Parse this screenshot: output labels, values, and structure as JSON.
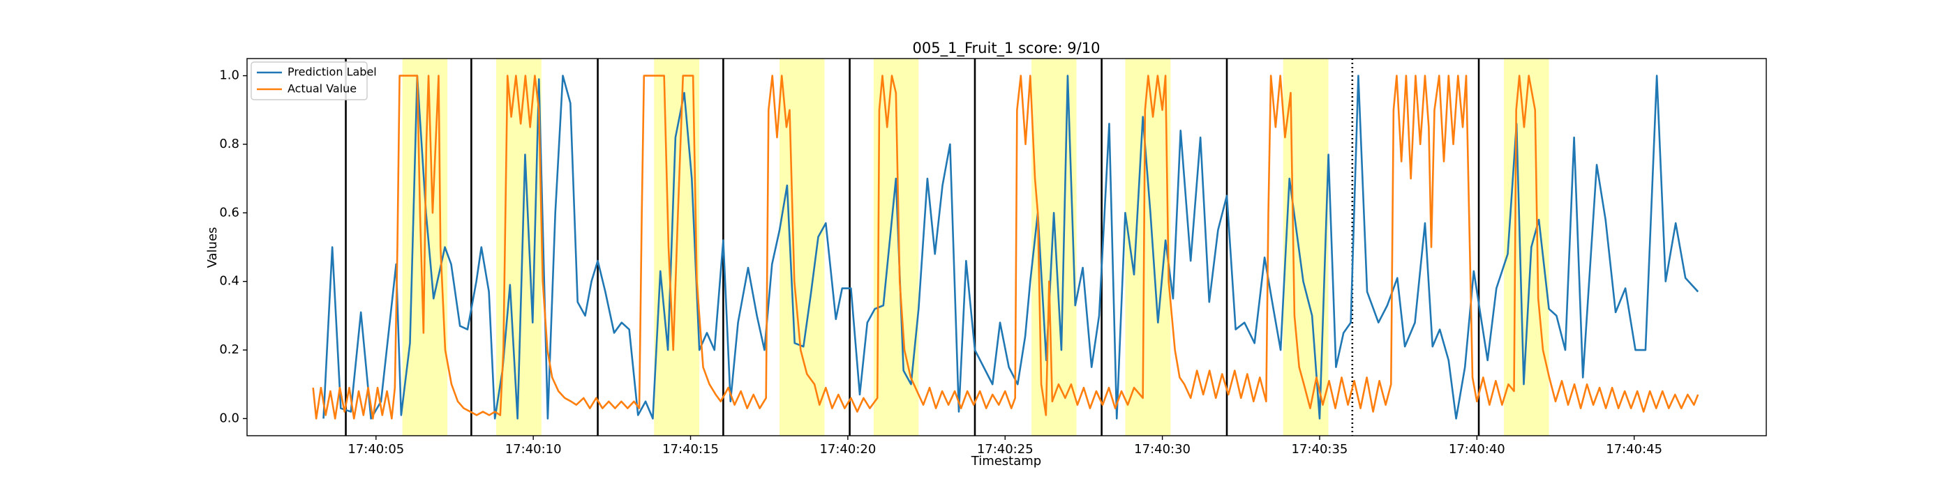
{
  "chart_data": {
    "type": "line",
    "title": "005_1_Fruit_1 score: 9/10",
    "xlabel": "Timestamp",
    "ylabel": "Values",
    "legend": "upper left",
    "grid": false,
    "xlim": [
      0.9,
      49.2
    ],
    "ylim": [
      -0.05,
      1.05
    ],
    "xticks": [
      {
        "value": 5,
        "label": "17:40:05"
      },
      {
        "value": 10,
        "label": "17:40:10"
      },
      {
        "value": 15,
        "label": "17:40:15"
      },
      {
        "value": 20,
        "label": "17:40:20"
      },
      {
        "value": 25,
        "label": "17:40:25"
      },
      {
        "value": 30,
        "label": "17:40:30"
      },
      {
        "value": 35,
        "label": "17:40:35"
      },
      {
        "value": 40,
        "label": "17:40:40"
      },
      {
        "value": 45,
        "label": "17:40:45"
      }
    ],
    "yticks": [
      {
        "value": 0,
        "label": "0.0"
      },
      0.2,
      0.4,
      0.6,
      0.8,
      {
        "value": 1,
        "label": "1.0"
      }
    ],
    "span_color": "#ffff00",
    "spans": [
      [
        5.84,
        7.27
      ],
      [
        8.82,
        10.26
      ],
      [
        13.84,
        15.28
      ],
      [
        17.83,
        19.26
      ],
      [
        20.82,
        22.25
      ],
      [
        25.84,
        27.27
      ],
      [
        28.82,
        30.26
      ],
      [
        33.84,
        35.28
      ],
      [
        40.86,
        42.29
      ]
    ],
    "vline_color": "#000000",
    "vlines": [
      {
        "x": 4.04,
        "style": "solid"
      },
      {
        "x": 8.03,
        "style": "solid"
      },
      {
        "x": 12.05,
        "style": "solid"
      },
      {
        "x": 16.04,
        "style": "solid"
      },
      {
        "x": 20.06,
        "style": "solid"
      },
      {
        "x": 24.04,
        "style": "solid"
      },
      {
        "x": 28.07,
        "style": "solid"
      },
      {
        "x": 32.05,
        "style": "solid"
      },
      {
        "x": 36.04,
        "style": "dotted"
      },
      {
        "x": 40.06,
        "style": "solid"
      }
    ],
    "series": [
      {
        "name": "Prediction Label",
        "color": "#1f77b4",
        "x": [
          3.33,
          3.61,
          3.88,
          4.2,
          4.52,
          4.84,
          5.16,
          5.64,
          5.8,
          6.08,
          6.31,
          6.59,
          6.83,
          7.19,
          7.39,
          7.67,
          7.91,
          8.19,
          8.35,
          8.59,
          8.78,
          9.02,
          9.26,
          9.5,
          9.74,
          9.98,
          10.18,
          10.46,
          10.7,
          10.94,
          11.18,
          11.41,
          11.65,
          11.85,
          12.05,
          12.29,
          12.57,
          12.81,
          13.05,
          13.33,
          13.57,
          13.8,
          14.04,
          14.28,
          14.52,
          14.8,
          15.04,
          15.28,
          15.52,
          15.76,
          16.04,
          16.27,
          16.51,
          16.83,
          17.11,
          17.35,
          17.59,
          17.83,
          18.07,
          18.31,
          18.59,
          18.82,
          19.06,
          19.3,
          19.62,
          19.82,
          20.1,
          20.38,
          20.62,
          20.86,
          21.13,
          21.53,
          21.77,
          22.01,
          22.25,
          22.53,
          22.77,
          23.01,
          23.25,
          23.53,
          23.76,
          24.04,
          24.32,
          24.6,
          24.84,
          25.12,
          25.4,
          25.64,
          25.8,
          26.04,
          26.31,
          26.55,
          26.79,
          26.99,
          27.23,
          27.47,
          27.75,
          27.99,
          28.31,
          28.55,
          28.82,
          29.1,
          29.38,
          29.62,
          29.86,
          30.1,
          30.34,
          30.58,
          30.9,
          31.21,
          31.49,
          31.77,
          32.05,
          32.33,
          32.61,
          32.93,
          33.25,
          33.53,
          33.76,
          34.04,
          34.48,
          34.76,
          35.0,
          35.28,
          35.52,
          35.76,
          35.99,
          36.23,
          36.51,
          36.87,
          37.15,
          37.47,
          37.71,
          38.03,
          38.35,
          38.59,
          38.82,
          39.1,
          39.34,
          39.62,
          39.9,
          40.34,
          40.62,
          40.98,
          41.26,
          41.49,
          41.73,
          41.97,
          42.29,
          42.53,
          42.81,
          43.09,
          43.37,
          43.81,
          44.09,
          44.41,
          44.72,
          45.04,
          45.36,
          45.72,
          46.0,
          46.32,
          46.63,
          47.03
        ],
        "values": [
          0.0,
          0.5,
          0.03,
          0.02,
          0.31,
          0.0,
          0.05,
          0.45,
          0.01,
          0.22,
          1.0,
          0.6,
          0.35,
          0.5,
          0.45,
          0.27,
          0.26,
          0.4,
          0.5,
          0.37,
          0.0,
          0.14,
          0.39,
          0.0,
          0.77,
          0.28,
          0.99,
          0.0,
          0.6,
          1.0,
          0.92,
          0.34,
          0.3,
          0.4,
          0.46,
          0.37,
          0.25,
          0.28,
          0.26,
          0.01,
          0.05,
          0.0,
          0.43,
          0.2,
          0.82,
          0.95,
          0.7,
          0.2,
          0.25,
          0.2,
          0.52,
          0.05,
          0.28,
          0.44,
          0.3,
          0.2,
          0.45,
          0.55,
          0.68,
          0.22,
          0.21,
          0.36,
          0.53,
          0.57,
          0.29,
          0.38,
          0.38,
          0.07,
          0.28,
          0.32,
          0.33,
          0.7,
          0.14,
          0.1,
          0.32,
          0.7,
          0.48,
          0.68,
          0.8,
          0.02,
          0.46,
          0.2,
          0.15,
          0.1,
          0.28,
          0.15,
          0.1,
          0.24,
          0.4,
          0.6,
          0.17,
          0.6,
          0.2,
          1.0,
          0.33,
          0.44,
          0.15,
          0.3,
          0.86,
          0.0,
          0.6,
          0.42,
          0.88,
          0.6,
          0.28,
          0.52,
          0.35,
          0.84,
          0.46,
          0.82,
          0.34,
          0.55,
          0.65,
          0.26,
          0.28,
          0.22,
          0.47,
          0.32,
          0.2,
          0.7,
          0.4,
          0.3,
          0.0,
          0.77,
          0.15,
          0.25,
          0.28,
          1.0,
          0.37,
          0.28,
          0.33,
          0.41,
          0.21,
          0.28,
          0.57,
          0.21,
          0.26,
          0.17,
          0.0,
          0.15,
          0.43,
          0.17,
          0.38,
          0.48,
          0.86,
          0.1,
          0.5,
          0.58,
          0.32,
          0.3,
          0.2,
          0.82,
          0.12,
          0.74,
          0.58,
          0.31,
          0.38,
          0.2,
          0.2,
          1.0,
          0.4,
          0.57,
          0.41,
          0.37
        ]
      },
      {
        "name": "Actual Value",
        "color": "#ff7f0e",
        "x": [
          3.0,
          3.1,
          3.25,
          3.4,
          3.55,
          3.7,
          3.85,
          4.0,
          4.15,
          4.3,
          4.45,
          4.6,
          4.75,
          4.9,
          5.05,
          5.2,
          5.35,
          5.5,
          5.6,
          5.68,
          5.75,
          6.31,
          6.4,
          6.51,
          6.6,
          6.67,
          6.8,
          6.99,
          7.05,
          7.2,
          7.4,
          7.6,
          7.79,
          8.0,
          8.2,
          8.4,
          8.6,
          8.78,
          8.95,
          9.05,
          9.18,
          9.3,
          9.45,
          9.6,
          9.75,
          9.9,
          10.05,
          10.18,
          10.3,
          10.45,
          10.6,
          10.8,
          11.0,
          11.2,
          11.37,
          11.6,
          11.8,
          12.0,
          12.2,
          12.4,
          12.6,
          12.8,
          13.0,
          13.2,
          13.37,
          13.45,
          13.52,
          14.16,
          14.3,
          14.45,
          14.6,
          14.76,
          15.08,
          15.2,
          15.4,
          15.6,
          15.8,
          15.96,
          16.2,
          16.4,
          16.6,
          16.8,
          17.0,
          17.2,
          17.4,
          17.48,
          17.6,
          17.75,
          17.9,
          18.05,
          18.15,
          18.3,
          18.5,
          18.7,
          18.94,
          19.1,
          19.3,
          19.5,
          19.7,
          19.9,
          20.1,
          20.3,
          20.5,
          20.7,
          20.94,
          21.0,
          21.1,
          21.25,
          21.4,
          21.53,
          21.65,
          21.8,
          22.0,
          22.2,
          22.4,
          22.6,
          22.8,
          23.0,
          23.2,
          23.4,
          23.6,
          23.8,
          24.0,
          24.2,
          24.4,
          24.6,
          24.8,
          25.0,
          25.2,
          25.32,
          25.38,
          25.5,
          25.65,
          25.8,
          25.95,
          26.04,
          26.15,
          26.3,
          26.4,
          26.5,
          26.7,
          26.91,
          27.1,
          27.3,
          27.5,
          27.7,
          27.9,
          28.1,
          28.3,
          28.5,
          28.7,
          28.9,
          29.1,
          29.38,
          29.45,
          29.55,
          29.7,
          29.85,
          30.0,
          30.1,
          30.2,
          30.4,
          30.55,
          30.7,
          30.9,
          31.1,
          31.3,
          31.5,
          31.7,
          31.9,
          32.1,
          32.3,
          32.5,
          32.7,
          32.9,
          33.1,
          33.3,
          33.37,
          33.45,
          33.6,
          33.75,
          33.9,
          34.08,
          34.2,
          34.35,
          34.5,
          34.7,
          34.9,
          35.1,
          35.3,
          35.5,
          35.7,
          35.9,
          36.1,
          36.3,
          36.5,
          36.7,
          36.9,
          37.1,
          37.27,
          37.35,
          37.45,
          37.6,
          37.75,
          37.9,
          38.05,
          38.2,
          38.35,
          38.47,
          38.55,
          38.65,
          38.8,
          38.95,
          39.1,
          39.25,
          39.4,
          39.55,
          39.66,
          39.86,
          40.0,
          40.2,
          40.4,
          40.6,
          40.8,
          41.0,
          41.18,
          41.25,
          41.35,
          41.5,
          41.65,
          41.85,
          41.95,
          42.1,
          42.3,
          42.5,
          42.7,
          42.9,
          43.1,
          43.3,
          43.5,
          43.7,
          43.9,
          44.1,
          44.3,
          44.5,
          44.7,
          44.9,
          45.1,
          45.3,
          45.5,
          45.7,
          45.9,
          46.1,
          46.3,
          46.5,
          46.7,
          46.9,
          47.03
        ],
        "values": [
          0.09,
          0.0,
          0.09,
          0.01,
          0.08,
          0.0,
          0.09,
          0.02,
          0.09,
          0.0,
          0.08,
          0.01,
          0.09,
          0.0,
          0.09,
          0.01,
          0.08,
          0.0,
          0.09,
          0.5,
          1.0,
          1.0,
          0.6,
          0.25,
          0.8,
          1.0,
          0.6,
          1.0,
          0.5,
          0.2,
          0.1,
          0.05,
          0.03,
          0.02,
          0.01,
          0.02,
          0.01,
          0.02,
          0.01,
          0.2,
          1.0,
          0.88,
          1.0,
          0.86,
          1.0,
          0.85,
          1.0,
          0.9,
          0.4,
          0.2,
          0.12,
          0.08,
          0.06,
          0.05,
          0.04,
          0.06,
          0.03,
          0.06,
          0.03,
          0.05,
          0.03,
          0.05,
          0.03,
          0.05,
          0.03,
          0.6,
          1.0,
          1.0,
          0.5,
          0.2,
          0.6,
          1.0,
          1.0,
          0.4,
          0.15,
          0.1,
          0.07,
          0.05,
          0.09,
          0.04,
          0.08,
          0.03,
          0.07,
          0.03,
          0.06,
          0.9,
          1.0,
          0.82,
          1.0,
          0.85,
          0.9,
          0.4,
          0.2,
          0.13,
          0.1,
          0.04,
          0.09,
          0.03,
          0.07,
          0.03,
          0.06,
          0.02,
          0.06,
          0.03,
          0.06,
          0.9,
          1.0,
          0.85,
          1.0,
          0.95,
          0.4,
          0.2,
          0.12,
          0.08,
          0.04,
          0.09,
          0.03,
          0.08,
          0.04,
          0.08,
          0.03,
          0.08,
          0.04,
          0.08,
          0.03,
          0.07,
          0.04,
          0.08,
          0.03,
          0.06,
          0.9,
          1.0,
          0.8,
          1.0,
          0.7,
          0.6,
          0.1,
          0.01,
          0.4,
          0.05,
          0.1,
          0.06,
          0.1,
          0.04,
          0.09,
          0.03,
          0.08,
          0.04,
          0.09,
          0.03,
          0.08,
          0.04,
          0.09,
          0.06,
          0.9,
          1.0,
          0.88,
          1.0,
          0.9,
          1.0,
          0.4,
          0.2,
          0.12,
          0.1,
          0.06,
          0.14,
          0.07,
          0.14,
          0.06,
          0.13,
          0.07,
          0.14,
          0.06,
          0.13,
          0.05,
          0.12,
          0.05,
          0.6,
          1.0,
          0.85,
          1.0,
          0.82,
          0.95,
          0.3,
          0.15,
          0.1,
          0.03,
          0.12,
          0.04,
          0.11,
          0.03,
          0.12,
          0.04,
          0.11,
          0.03,
          0.12,
          0.02,
          0.11,
          0.04,
          0.1,
          0.9,
          1.0,
          0.75,
          1.0,
          0.7,
          1.0,
          0.8,
          1.0,
          0.85,
          0.5,
          0.9,
          1.0,
          0.75,
          1.0,
          0.8,
          1.0,
          0.85,
          1.0,
          0.12,
          0.05,
          0.12,
          0.04,
          0.11,
          0.04,
          0.1,
          0.08,
          0.9,
          1.0,
          0.85,
          1.0,
          0.9,
          0.35,
          0.2,
          0.12,
          0.05,
          0.11,
          0.04,
          0.1,
          0.03,
          0.1,
          0.04,
          0.09,
          0.03,
          0.09,
          0.03,
          0.08,
          0.03,
          0.08,
          0.02,
          0.08,
          0.03,
          0.08,
          0.03,
          0.07,
          0.03,
          0.07,
          0.04,
          0.07
        ]
      }
    ]
  }
}
